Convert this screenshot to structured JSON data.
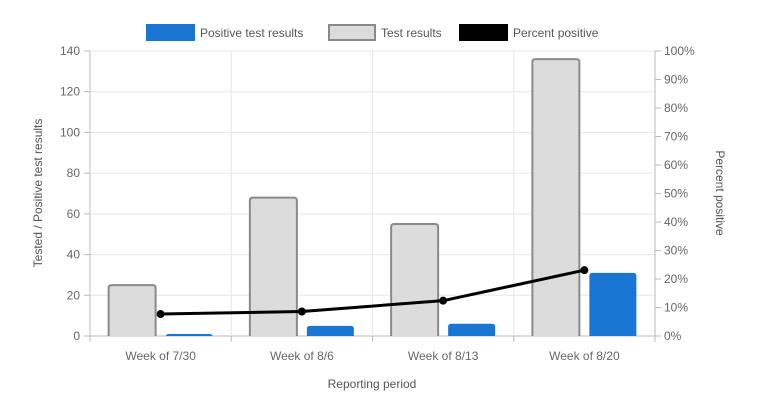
{
  "chart_data": {
    "type": "bar",
    "categories": [
      "Week of 7/30",
      "Week of 8/6",
      "Week of 8/13",
      "Week of 8/20"
    ],
    "series": [
      {
        "name": "Test results",
        "type": "bar",
        "axis": "left",
        "values": [
          25,
          68,
          55,
          136
        ]
      },
      {
        "name": "Positive test results",
        "type": "bar",
        "axis": "left",
        "values": [
          1,
          5,
          6,
          31
        ]
      },
      {
        "name": "Percent positive",
        "type": "line",
        "axis": "right",
        "values": [
          7.7,
          8.6,
          12.4,
          23.1
        ]
      }
    ],
    "legend": [
      {
        "name": "Positive test results",
        "color": "#1976d2",
        "border": "#1976d2"
      },
      {
        "name": "Test results",
        "color": "#dcdcdc",
        "border": "#8a8a8a"
      },
      {
        "name": "Percent positive",
        "color": "#000000",
        "border": "#000000"
      }
    ],
    "legend_position": "top",
    "xlabel": "Reporting period",
    "ylabel": "Tested / Positive test results",
    "y2label": "Percent positive",
    "ylim": [
      0,
      140
    ],
    "yticks": [
      0,
      20,
      40,
      60,
      80,
      100,
      120,
      140
    ],
    "y2lim": [
      0,
      100
    ],
    "y2ticks": [
      "0%",
      "10%",
      "20%",
      "30%",
      "40%",
      "50%",
      "60%",
      "70%",
      "80%",
      "90%",
      "100%"
    ],
    "grid": true,
    "colors": {
      "tested": "#dcdcdc",
      "tested_border": "#8a8a8a",
      "positive": "#1976d2",
      "line": "#000000",
      "grid": "#e6e6e6"
    }
  }
}
